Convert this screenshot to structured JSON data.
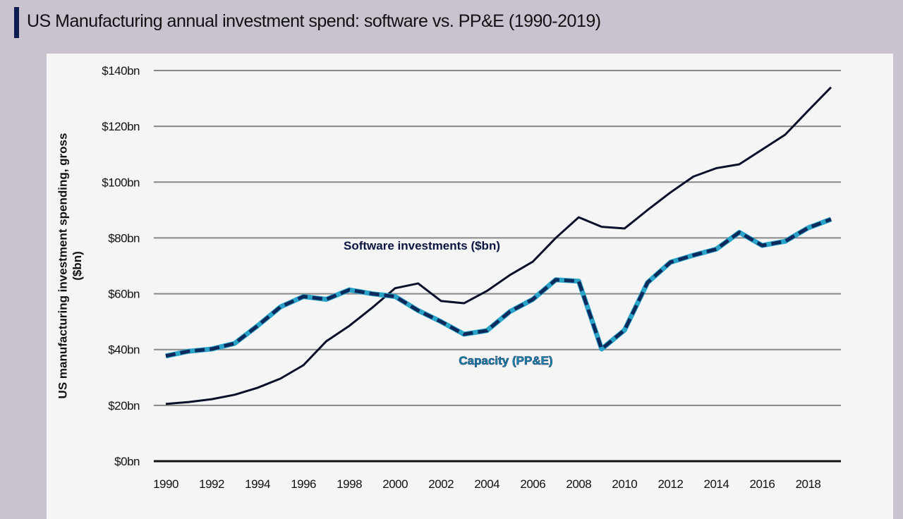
{
  "chart_data": {
    "type": "line",
    "title": "US Manufacturing annual investment spend: software vs. PP&E (1990-2019)",
    "ylabel": "US manufacturing investment spending, gross ($bn)",
    "xlabel": "",
    "ylim": [
      0,
      140
    ],
    "xlim": [
      1990,
      2019
    ],
    "grid": true,
    "yticks": [
      "$0bn",
      "$20bn",
      "$40bn",
      "$60bn",
      "$80bn",
      "$100bn",
      "$120bn",
      "$140bn"
    ],
    "xticks": [
      "1990",
      "1992",
      "1994",
      "1996",
      "1998",
      "2000",
      "2002",
      "2004",
      "2006",
      "2008",
      "2010",
      "2012",
      "2014",
      "2016",
      "2018"
    ],
    "x": [
      1990,
      1991,
      1992,
      1993,
      1994,
      1995,
      1996,
      1997,
      1998,
      1999,
      2000,
      2001,
      2002,
      2003,
      2004,
      2005,
      2006,
      2007,
      2008,
      2009,
      2010,
      2011,
      2012,
      2013,
      2014,
      2015,
      2016,
      2017,
      2018,
      2019
    ],
    "series": [
      {
        "name": "Software investments ($bn)",
        "style": "solid",
        "color": "#0a0f2a",
        "values": [
          20.5,
          21.2,
          22.2,
          23.8,
          26.3,
          29.6,
          34.4,
          43,
          48.5,
          55,
          62,
          63.7,
          57.4,
          56.6,
          61,
          66.7,
          71.5,
          80,
          87.4,
          84,
          83.4,
          90,
          96.3,
          102,
          105,
          106.4,
          111.7,
          117,
          125.6,
          134
        ]
      },
      {
        "name": "Capacity (PP&E)",
        "style": "dashed",
        "color": "#0d2a5c",
        "label_color": "#1a8fb0",
        "values": [
          37.7,
          39.4,
          40.2,
          42.2,
          48.5,
          55.3,
          59,
          58,
          61.4,
          60,
          59,
          54,
          50,
          45.5,
          46.8,
          53.6,
          58,
          65,
          64.5,
          40.2,
          47,
          64,
          71.3,
          73.8,
          76,
          82,
          77.3,
          78.8,
          83.6,
          86.7
        ]
      }
    ]
  },
  "colors": {
    "background": "#cbc2d0",
    "panel": "#f5f5f5",
    "title_bar": "#0d1b52",
    "grid": "#888888"
  }
}
